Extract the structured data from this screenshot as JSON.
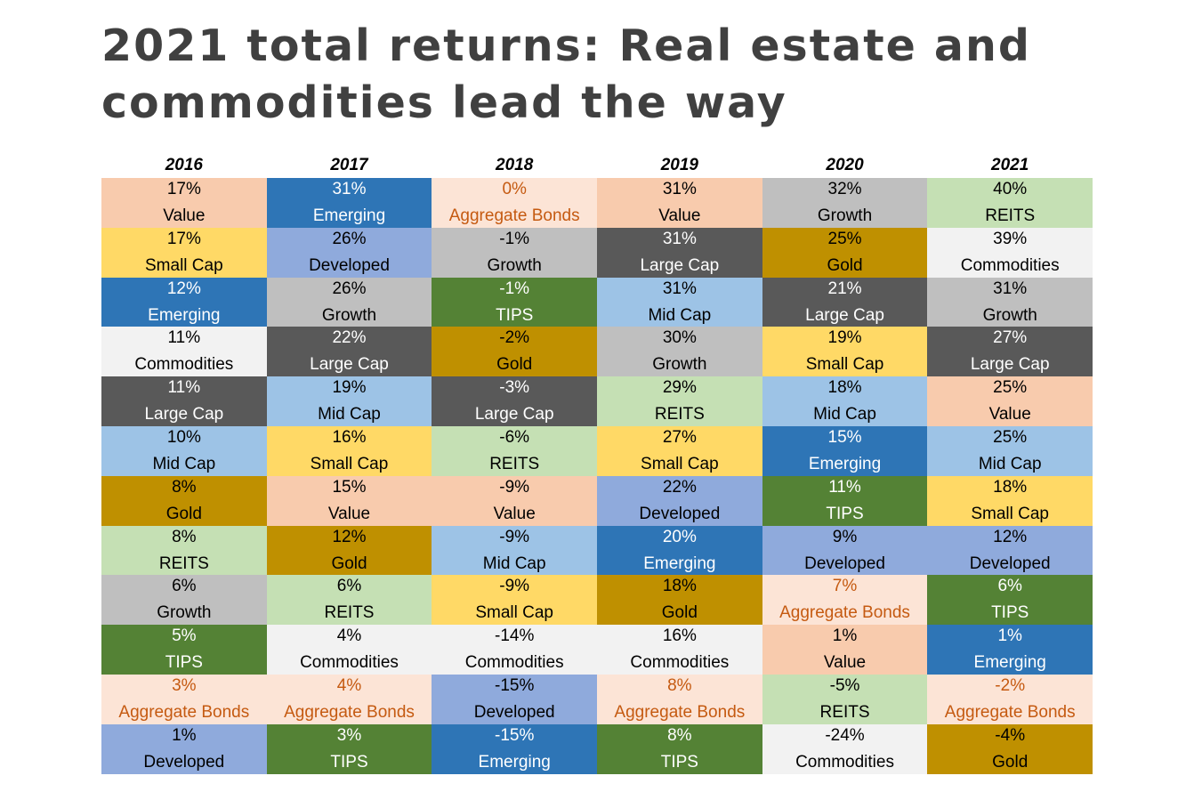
{
  "title": {
    "line1": "2021 total returns: Real estate and",
    "line2": "commodities lead the way"
  },
  "colors": {
    "Value": {
      "bg": "#f8cbad",
      "fg": "#000000"
    },
    "Small Cap": {
      "bg": "#ffd966",
      "fg": "#000000"
    },
    "Emerging": {
      "bg": "#2e75b6",
      "fg": "#ffffff"
    },
    "Commodities": {
      "bg": "#f2f2f2",
      "fg": "#000000"
    },
    "Large Cap": {
      "bg": "#595959",
      "fg": "#ffffff"
    },
    "Mid Cap": {
      "bg": "#9dc3e6",
      "fg": "#000000"
    },
    "Gold": {
      "bg": "#bf9000",
      "fg": "#000000"
    },
    "REITS": {
      "bg": "#c5e0b4",
      "fg": "#000000"
    },
    "Growth": {
      "bg": "#bfbfbf",
      "fg": "#000000"
    },
    "TIPS": {
      "bg": "#548235",
      "fg": "#ffffff"
    },
    "Aggregate Bonds": {
      "bg": "#fce4d6",
      "fg": "#c55a11"
    },
    "Developed": {
      "bg": "#8faadc",
      "fg": "#000000"
    }
  },
  "chart_data": {
    "type": "table",
    "title": "2021 total returns: Real estate and commodities lead the way",
    "years": [
      "2016",
      "2017",
      "2018",
      "2019",
      "2020",
      "2021"
    ],
    "columns": [
      [
        {
          "pct": "17%",
          "asset": "Value"
        },
        {
          "pct": "17%",
          "asset": "Small Cap"
        },
        {
          "pct": "12%",
          "asset": "Emerging"
        },
        {
          "pct": "11%",
          "asset": "Commodities"
        },
        {
          "pct": "11%",
          "asset": "Large Cap"
        },
        {
          "pct": "10%",
          "asset": "Mid Cap"
        },
        {
          "pct": "8%",
          "asset": "Gold"
        },
        {
          "pct": "8%",
          "asset": "REITS"
        },
        {
          "pct": "6%",
          "asset": "Growth"
        },
        {
          "pct": "5%",
          "asset": "TIPS"
        },
        {
          "pct": "3%",
          "asset": "Aggregate Bonds"
        },
        {
          "pct": "1%",
          "asset": "Developed"
        }
      ],
      [
        {
          "pct": "31%",
          "asset": "Emerging"
        },
        {
          "pct": "26%",
          "asset": "Developed"
        },
        {
          "pct": "26%",
          "asset": "Growth"
        },
        {
          "pct": "22%",
          "asset": "Large Cap"
        },
        {
          "pct": "19%",
          "asset": "Mid Cap"
        },
        {
          "pct": "16%",
          "asset": "Small Cap"
        },
        {
          "pct": "15%",
          "asset": "Value"
        },
        {
          "pct": "12%",
          "asset": "Gold"
        },
        {
          "pct": "6%",
          "asset": "REITS"
        },
        {
          "pct": "4%",
          "asset": "Commodities"
        },
        {
          "pct": "4%",
          "asset": "Aggregate Bonds"
        },
        {
          "pct": "3%",
          "asset": "TIPS"
        }
      ],
      [
        {
          "pct": "0%",
          "asset": "Aggregate Bonds"
        },
        {
          "pct": "-1%",
          "asset": "Growth"
        },
        {
          "pct": "-1%",
          "asset": "TIPS"
        },
        {
          "pct": "-2%",
          "asset": "Gold"
        },
        {
          "pct": "-3%",
          "asset": "Large Cap"
        },
        {
          "pct": "-6%",
          "asset": "REITS"
        },
        {
          "pct": "-9%",
          "asset": "Value"
        },
        {
          "pct": "-9%",
          "asset": "Mid Cap"
        },
        {
          "pct": "-9%",
          "asset": "Small Cap"
        },
        {
          "pct": "-14%",
          "asset": "Commodities"
        },
        {
          "pct": "-15%",
          "asset": "Developed"
        },
        {
          "pct": "-15%",
          "asset": "Emerging"
        }
      ],
      [
        {
          "pct": "31%",
          "asset": "Value"
        },
        {
          "pct": "31%",
          "asset": "Large Cap"
        },
        {
          "pct": "31%",
          "asset": "Mid Cap"
        },
        {
          "pct": "30%",
          "asset": "Growth"
        },
        {
          "pct": "29%",
          "asset": "REITS"
        },
        {
          "pct": "27%",
          "asset": "Small Cap"
        },
        {
          "pct": "22%",
          "asset": "Developed"
        },
        {
          "pct": "20%",
          "asset": "Emerging"
        },
        {
          "pct": "18%",
          "asset": "Gold"
        },
        {
          "pct": "16%",
          "asset": "Commodities"
        },
        {
          "pct": "8%",
          "asset": "Aggregate Bonds"
        },
        {
          "pct": "8%",
          "asset": "TIPS"
        }
      ],
      [
        {
          "pct": "32%",
          "asset": "Growth"
        },
        {
          "pct": "25%",
          "asset": "Gold"
        },
        {
          "pct": "21%",
          "asset": "Large Cap"
        },
        {
          "pct": "19%",
          "asset": "Small Cap"
        },
        {
          "pct": "18%",
          "asset": "Mid Cap"
        },
        {
          "pct": "15%",
          "asset": "Emerging"
        },
        {
          "pct": "11%",
          "asset": "TIPS"
        },
        {
          "pct": "9%",
          "asset": "Developed"
        },
        {
          "pct": "7%",
          "asset": "Aggregate Bonds"
        },
        {
          "pct": "1%",
          "asset": "Value"
        },
        {
          "pct": "-5%",
          "asset": "REITS"
        },
        {
          "pct": "-24%",
          "asset": "Commodities"
        }
      ],
      [
        {
          "pct": "40%",
          "asset": "REITS"
        },
        {
          "pct": "39%",
          "asset": "Commodities"
        },
        {
          "pct": "31%",
          "asset": "Growth"
        },
        {
          "pct": "27%",
          "asset": "Large Cap"
        },
        {
          "pct": "25%",
          "asset": "Value"
        },
        {
          "pct": "25%",
          "asset": "Mid Cap"
        },
        {
          "pct": "18%",
          "asset": "Small Cap"
        },
        {
          "pct": "12%",
          "asset": "Developed"
        },
        {
          "pct": "6%",
          "asset": "TIPS"
        },
        {
          "pct": "1%",
          "asset": "Emerging"
        },
        {
          "pct": "-2%",
          "asset": "Aggregate Bonds"
        },
        {
          "pct": "-4%",
          "asset": "Gold"
        }
      ]
    ]
  }
}
